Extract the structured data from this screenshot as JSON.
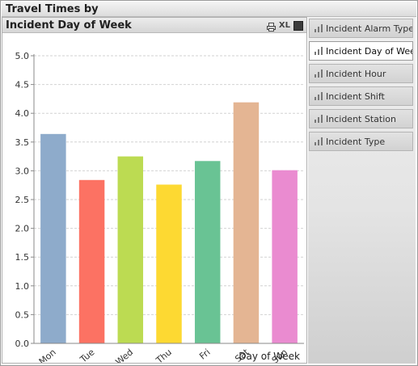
{
  "window": {
    "title": "Travel Times by"
  },
  "chart_panel": {
    "caption": "Incident Day of Week",
    "icons": [
      "print-icon",
      "excel-icon",
      "minimize-icon"
    ],
    "xl_label": "XL"
  },
  "listbox": {
    "items": [
      {
        "label": "Incident Alarm Type",
        "selected": false
      },
      {
        "label": "Incident Day of Week",
        "selected": true
      },
      {
        "label": "Incident Hour",
        "selected": false
      },
      {
        "label": "Incident Shift",
        "selected": false
      },
      {
        "label": "Incident Station",
        "selected": false
      },
      {
        "label": "Incident Type",
        "selected": false
      }
    ]
  },
  "chart_data": {
    "type": "bar",
    "title": "",
    "xlabel": "Day of Week",
    "ylabel": "",
    "ylim": [
      0,
      5
    ],
    "yticks": [
      "0.0",
      "0.5",
      "1.0",
      "1.5",
      "2.0",
      "2.5",
      "3.0",
      "3.5",
      "4.0",
      "4.5",
      "5.0"
    ],
    "grid": true,
    "categories": [
      "Mon",
      "Tue",
      "Wed",
      "Thu",
      "Fri",
      "Sat",
      "Sun"
    ],
    "values": [
      3.64,
      2.84,
      3.25,
      2.76,
      3.17,
      4.19,
      3.01
    ],
    "colors": [
      "#8eabcb",
      "#fc7263",
      "#bcdb52",
      "#fdd932",
      "#69c394",
      "#e4b593",
      "#ea8bd0"
    ]
  }
}
